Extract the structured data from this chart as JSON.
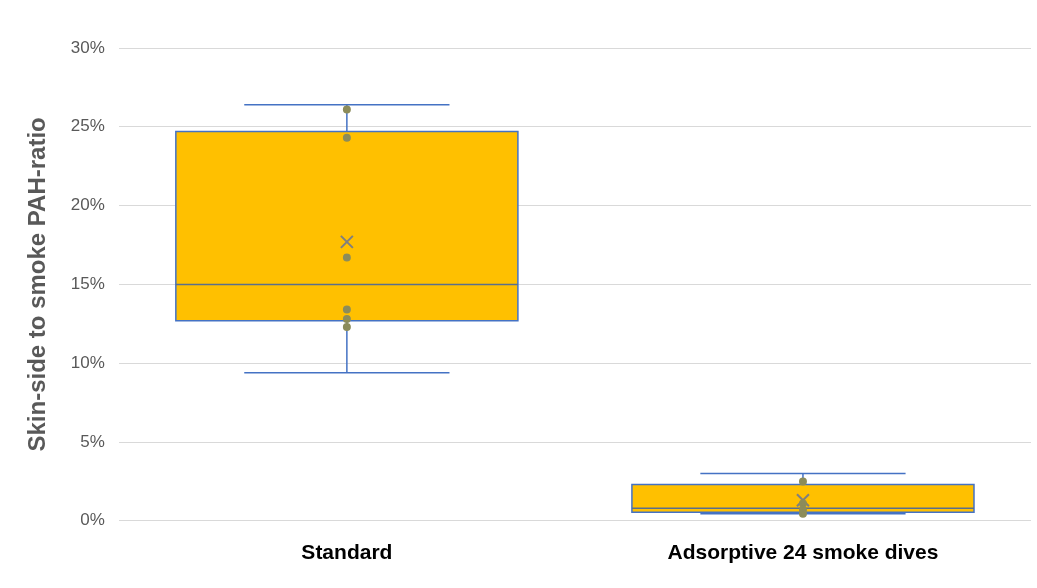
{
  "chart_data": {
    "type": "box",
    "ylabel": "Skin-side to smoke PAH-ratio",
    "categories": [
      "Standard",
      "Adsorptive 24 smoke dives"
    ],
    "series": [
      {
        "type": "box",
        "color": "#ffc000",
        "boxes": [
          {
            "low": 9.4,
            "q1": 12.7,
            "median": 15.0,
            "q3": 24.7,
            "high": 26.4,
            "mean": 17.7
          },
          {
            "low": 0.45,
            "q1": 0.55,
            "median": 0.8,
            "q3": 2.3,
            "high": 3.0,
            "mean": 1.3
          }
        ]
      },
      {
        "type": "scatter",
        "color": "#8c8c5a",
        "x": [
          "Standard",
          "Standard",
          "Standard",
          "Standard",
          "Standard",
          "Standard",
          "Adsorptive 24 smoke dives",
          "Adsorptive 24 smoke dives",
          "Adsorptive 24 smoke dives",
          "Adsorptive 24 smoke dives"
        ],
        "values": [
          26.1,
          24.3,
          16.7,
          13.4,
          12.8,
          12.3,
          2.5,
          1.1,
          0.7,
          0.45
        ]
      }
    ],
    "ylim": [
      0,
      30
    ],
    "yticks": [
      {
        "value": 0,
        "label": "0%"
      },
      {
        "value": 5,
        "label": "5%"
      },
      {
        "value": 10,
        "label": "10%"
      },
      {
        "value": 15,
        "label": "15%"
      },
      {
        "value": 20,
        "label": "20%"
      },
      {
        "value": 25,
        "label": "25%"
      },
      {
        "value": 30,
        "label": "30%"
      }
    ],
    "grid": "y",
    "legend": false,
    "marker": "circle"
  }
}
